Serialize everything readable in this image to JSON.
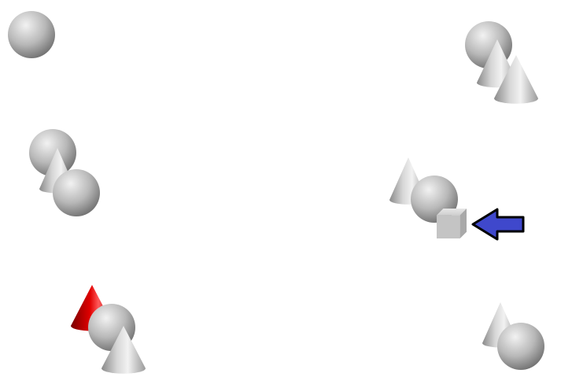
{
  "scene": {
    "background": "#ffffff",
    "colors": {
      "gray_light": "#f2f2f2",
      "gray_mid": "#b8b8b8",
      "gray_dark": "#6e6e6e",
      "red_light": "#ff5a5a",
      "red_mid": "#d00000",
      "red_dark": "#7a0000",
      "arrow_fill": "#3f48cc",
      "arrow_stroke": "#000000"
    },
    "objects": [
      {
        "shape": "sphere",
        "color": "gray"
      },
      {
        "shape": "sphere",
        "color": "gray"
      },
      {
        "shape": "cone",
        "color": "gray"
      },
      {
        "shape": "sphere",
        "color": "gray"
      },
      {
        "shape": "cone",
        "color": "red"
      },
      {
        "shape": "sphere",
        "color": "gray"
      },
      {
        "shape": "cone",
        "color": "gray"
      },
      {
        "shape": "sphere",
        "color": "gray"
      },
      {
        "shape": "cone",
        "color": "gray"
      },
      {
        "shape": "cone",
        "color": "gray"
      },
      {
        "shape": "cone",
        "color": "gray"
      },
      {
        "shape": "sphere",
        "color": "gray"
      },
      {
        "shape": "cube",
        "color": "gray"
      },
      {
        "shape": "cone",
        "color": "gray"
      },
      {
        "shape": "sphere",
        "color": "gray"
      }
    ],
    "pointer": {
      "shape": "arrow",
      "direction": "left",
      "target_shape": "cube"
    }
  }
}
